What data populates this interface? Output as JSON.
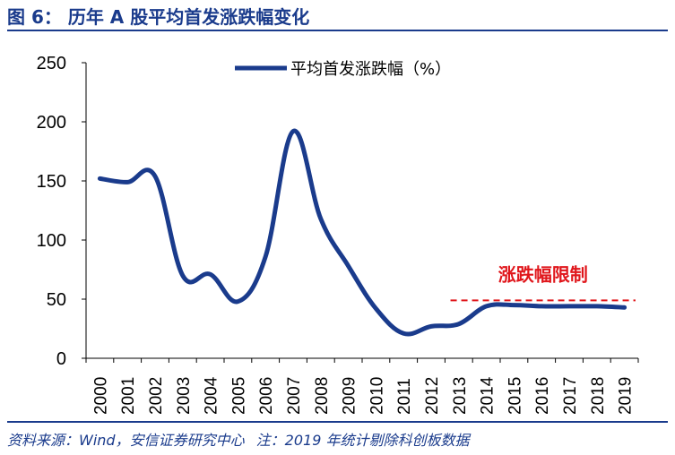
{
  "figure": {
    "title": "图 6： 历年 A 股平均首发涨跌幅变化"
  },
  "footer": {
    "source": "资料来源：Wind，安信证券研究中心",
    "note": "注：2019 年统计剔除科创板数据"
  },
  "chart_data": {
    "type": "line",
    "x": [
      "2000",
      "2001",
      "2002",
      "2003",
      "2004",
      "2005",
      "2006",
      "2007",
      "2008",
      "2009",
      "2010",
      "2011",
      "2012",
      "2013",
      "2014",
      "2015",
      "2016",
      "2017",
      "2018",
      "2019"
    ],
    "series": [
      {
        "name": "平均首发涨跌幅（%）",
        "color": "#1a3b8c",
        "values": [
          152,
          149,
          154,
          70,
          71,
          48,
          86,
          192,
          118,
          78,
          42,
          21,
          27,
          29,
          44,
          45,
          44,
          44,
          44,
          43
        ]
      }
    ],
    "yticks": [
      0,
      50,
      100,
      150,
      200,
      250
    ],
    "ylim": [
      0,
      250
    ],
    "grid": false,
    "legend": "top-center",
    "annotation": {
      "text": "涨跌幅限制",
      "color": "#e0161b",
      "value": 49,
      "from": "2013",
      "to": "2019"
    }
  }
}
